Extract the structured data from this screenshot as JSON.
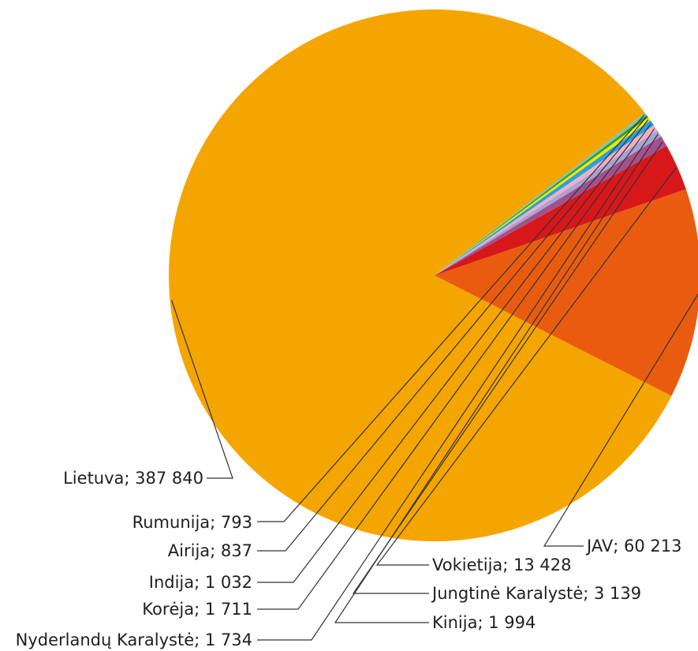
{
  "chart_data": {
    "type": "pie",
    "slices": [
      {
        "label": "Lietuva",
        "value": 387840,
        "text": "Lietuva; 387 840",
        "color": "#f5a500"
      },
      {
        "label": "JAV",
        "value": 60213,
        "text": "JAV; 60 213",
        "color": "#e95c0f"
      },
      {
        "label": "Vokietija",
        "value": 13428,
        "text": "Vokietija; 13 428",
        "color": "#d8171b"
      },
      {
        "label": "Jungtinė Karalystė",
        "value": 3139,
        "text": "Jungtinė Karalystė; 3 139",
        "color": "#a3518b"
      },
      {
        "label": "Kinija",
        "value": 1994,
        "text": "Kinija; 1 994",
        "color": "#a8a3d3"
      },
      {
        "label": "Nyderlandų Karalystė",
        "value": 1734,
        "text": "Nyderlandų Karalystė; 1 734",
        "color": "#f4aec3"
      },
      {
        "label": "Korėja",
        "value": 1711,
        "text": "Korėja; 1 711",
        "color": "#2aa2dc"
      },
      {
        "label": "Indija",
        "value": 1032,
        "text": "Indija; 1 032",
        "color": "#f6e400"
      },
      {
        "label": "Airija",
        "value": 837,
        "text": "Airija; 837",
        "color": "#2f9e3e"
      },
      {
        "label": "Rumunija",
        "value": 793,
        "text": "Rumunija; 793",
        "color": "#7fc7a9"
      }
    ]
  }
}
